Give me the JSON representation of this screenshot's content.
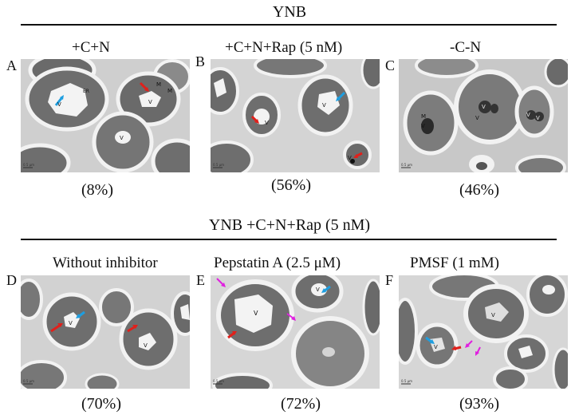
{
  "figure": {
    "top_header": "YNB",
    "bottom_header": "YNB +C+N+Rap (5 nM)",
    "panels": [
      {
        "letter": "A",
        "title": "+C+N",
        "percent": "(8%)",
        "labels": [
          "V",
          "ER",
          "M",
          "M",
          "V",
          "V"
        ],
        "scale_text": "0.5 μm"
      },
      {
        "letter": "B",
        "title": "+C+N+Rap (5 nM)",
        "percent": "(56%)",
        "labels": [
          "V",
          "V",
          "V"
        ],
        "scale_text": "0.5 μm"
      },
      {
        "letter": "C",
        "title": "-C-N",
        "percent": "(46%)",
        "labels": [
          "M",
          "V",
          "V",
          "V",
          "V",
          "V"
        ],
        "scale_text": "0.5 μm"
      },
      {
        "letter": "D",
        "title": "Without inhibitor",
        "percent": "(70%)",
        "labels": [
          "V",
          "V"
        ],
        "scale_text": "0.5 μm"
      },
      {
        "letter": "E",
        "title": "Pepstatin A (2.5 μM)",
        "percent": "(72%)",
        "labels": [
          "V",
          "V"
        ],
        "scale_text": "0.5 μm"
      },
      {
        "letter": "F",
        "title": "PMSF (1 mM)",
        "percent": "(93%)",
        "labels": [
          "V",
          "V"
        ],
        "scale_text": "0.5 μm"
      }
    ],
    "arrow_colors": {
      "red": "#e0201b",
      "blue": "#1e9ee0",
      "magenta": "#e020e0"
    }
  }
}
